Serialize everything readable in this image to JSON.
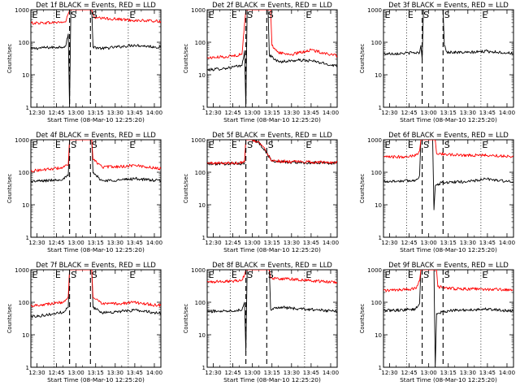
{
  "chart_data": {
    "type": "line",
    "y_scale": "log",
    "ylim": [
      1,
      1000
    ],
    "xlim": [
      "12:25:20",
      "14:05"
    ],
    "ylabel": "Counts/sec",
    "xlabel": "Start Time (08-Mar-10 12:25:20)",
    "x_ticks": [
      "12:30",
      "12:45",
      "13:00",
      "13:15",
      "13:30",
      "13:45",
      "14:00"
    ],
    "y_ticks": [
      "1",
      "10",
      "100",
      "1000"
    ],
    "markers": [
      {
        "label": "E",
        "style": "dotted",
        "times": [
          "12:43",
          "13:40"
        ]
      },
      {
        "label": "S",
        "style": "dashed",
        "times": [
          "12:55",
          "13:11"
        ]
      }
    ],
    "colors": {
      "events": "#000000",
      "lld": "#ff0000"
    },
    "panels": [
      {
        "title": "Det 1f BLACK = Events, RED = LLD",
        "series": [
          {
            "name": "BLACK",
            "pts": [
              [
                "12:25:20",
                63
              ],
              [
                "12:35",
                68
              ],
              [
                "12:45",
                70
              ],
              [
                "12:52",
                75
              ],
              [
                "12:54",
                180
              ],
              [
                "12:55",
                1
              ],
              [
                "12:56",
                1000
              ],
              [
                "13:12",
                1000
              ],
              [
                "13:13",
                72
              ],
              [
                "13:20",
                64
              ],
              [
                "13:35",
                74
              ],
              [
                "13:45",
                82
              ],
              [
                "14:00",
                72
              ],
              [
                "14:05",
                70
              ]
            ]
          },
          {
            "name": "RED",
            "pts": [
              [
                "12:25:20",
                390
              ],
              [
                "12:40",
                400
              ],
              [
                "12:52",
                420
              ],
              [
                "12:55",
                1000
              ],
              [
                "13:12",
                1000
              ],
              [
                "13:14",
                560
              ],
              [
                "13:30",
                520
              ],
              [
                "13:45",
                470
              ],
              [
                "14:05",
                440
              ]
            ]
          }
        ]
      },
      {
        "title": "Det 2f BLACK = Events, RED = LLD",
        "series": [
          {
            "name": "BLACK",
            "pts": [
              [
                "12:25:20",
                14
              ],
              [
                "12:40",
                16
              ],
              [
                "12:52",
                19
              ],
              [
                "12:54",
                55
              ],
              [
                "12:55",
                1
              ],
              [
                "12:56",
                1000
              ],
              [
                "13:12",
                1000
              ],
              [
                "13:13",
                40
              ],
              [
                "13:20",
                25
              ],
              [
                "13:35",
                28
              ],
              [
                "13:45",
                27
              ],
              [
                "14:00",
                20
              ],
              [
                "14:05",
                19
              ]
            ]
          },
          {
            "name": "RED",
            "pts": [
              [
                "12:25:20",
                33
              ],
              [
                "12:40",
                36
              ],
              [
                "12:52",
                42
              ],
              [
                "12:55",
                1000
              ],
              [
                "13:14",
                1000
              ],
              [
                "13:15",
                80
              ],
              [
                "13:20",
                48
              ],
              [
                "13:30",
                42
              ],
              [
                "13:45",
                58
              ],
              [
                "14:00",
                42
              ],
              [
                "14:05",
                38
              ]
            ]
          }
        ]
      },
      {
        "title": "Det 3f BLACK = Events, RED = LLD",
        "series": [
          {
            "name": "BLACK",
            "pts": [
              [
                "12:25:20",
                44
              ],
              [
                "12:40",
                46
              ],
              [
                "12:53",
                48
              ],
              [
                "12:54",
                80
              ],
              [
                "12:55",
                30
              ],
              [
                "12:56",
                1000
              ],
              [
                "13:11",
                1000
              ],
              [
                "13:12",
                78
              ],
              [
                "13:14",
                50
              ],
              [
                "13:30",
                48
              ],
              [
                "13:45",
                53
              ],
              [
                "14:00",
                47
              ],
              [
                "14:05",
                46
              ]
            ]
          }
        ]
      },
      {
        "title": "Det 4f BLACK = Events, RED = LLD",
        "series": [
          {
            "name": "BLACK",
            "pts": [
              [
                "12:25:20",
                52
              ],
              [
                "12:40",
                56
              ],
              [
                "12:50",
                62
              ],
              [
                "12:54",
                78
              ],
              [
                "12:55",
                1000
              ],
              [
                "13:12",
                1000
              ],
              [
                "13:13",
                95
              ],
              [
                "13:20",
                55
              ],
              [
                "13:35",
                58
              ],
              [
                "13:45",
                64
              ],
              [
                "14:00",
                56
              ],
              [
                "14:05",
                55
              ]
            ]
          },
          {
            "name": "RED",
            "pts": [
              [
                "12:25:20",
                110
              ],
              [
                "12:40",
                125
              ],
              [
                "12:50",
                140
              ],
              [
                "12:54",
                170
              ],
              [
                "12:55",
                1000
              ],
              [
                "13:12",
                1000
              ],
              [
                "13:13",
                250
              ],
              [
                "13:20",
                145
              ],
              [
                "13:35",
                150
              ],
              [
                "13:45",
                165
              ],
              [
                "14:00",
                135
              ],
              [
                "14:05",
                130
              ]
            ]
          }
        ]
      },
      {
        "title": "Det 5f BLACK = Events, RED = LLD",
        "series": [
          {
            "name": "BLACK",
            "pts": [
              [
                "12:25:20",
                180
              ],
              [
                "12:50",
                185
              ],
              [
                "12:54",
                190
              ],
              [
                "12:55",
                1000
              ],
              [
                "13:00",
                1000
              ],
              [
                "13:05",
                800
              ],
              [
                "13:10",
                450
              ],
              [
                "13:15",
                220
              ],
              [
                "13:30",
                200
              ],
              [
                "13:45",
                195
              ],
              [
                "14:05",
                190
              ]
            ]
          },
          {
            "name": "RED",
            "pts": [
              [
                "12:25:20",
                190
              ],
              [
                "12:50",
                195
              ],
              [
                "12:54",
                210
              ],
              [
                "12:55",
                1000
              ],
              [
                "13:00",
                1000
              ],
              [
                "13:05",
                850
              ],
              [
                "13:10",
                480
              ],
              [
                "13:15",
                230
              ],
              [
                "13:30",
                210
              ],
              [
                "13:45",
                205
              ],
              [
                "14:05",
                200
              ]
            ]
          }
        ]
      },
      {
        "title": "Det 6f BLACK = Events, RED = LLD",
        "series": [
          {
            "name": "BLACK",
            "pts": [
              [
                "12:25:20",
                52
              ],
              [
                "12:40",
                54
              ],
              [
                "12:50",
                56
              ],
              [
                "12:53",
                80
              ],
              [
                "12:54",
                1000
              ],
              [
                "13:03",
                1000
              ],
              [
                "13:04",
                7
              ],
              [
                "13:05",
                38
              ],
              [
                "13:10",
                48
              ],
              [
                "13:30",
                52
              ],
              [
                "13:45",
                62
              ],
              [
                "14:00",
                52
              ],
              [
                "14:05",
                50
              ]
            ]
          },
          {
            "name": "RED",
            "pts": [
              [
                "12:25:20",
                290
              ],
              [
                "12:40",
                300
              ],
              [
                "12:50",
                330
              ],
              [
                "12:53",
                450
              ],
              [
                "12:54",
                1000
              ],
              [
                "13:05",
                1000
              ],
              [
                "13:06",
                380
              ],
              [
                "13:20",
                340
              ],
              [
                "13:45",
                330
              ],
              [
                "14:05",
                310
              ]
            ]
          }
        ]
      },
      {
        "title": "Det 7f BLACK = Events, RED = LLD",
        "series": [
          {
            "name": "BLACK",
            "pts": [
              [
                "12:25:20",
                36
              ],
              [
                "12:40",
                42
              ],
              [
                "12:50",
                50
              ],
              [
                "12:54",
                70
              ],
              [
                "12:55",
                1000
              ],
              [
                "13:12",
                1000
              ],
              [
                "13:13",
                70
              ],
              [
                "13:20",
                48
              ],
              [
                "13:35",
                52
              ],
              [
                "13:45",
                58
              ],
              [
                "14:00",
                48
              ],
              [
                "14:05",
                46
              ]
            ]
          },
          {
            "name": "RED",
            "pts": [
              [
                "12:25:20",
                78
              ],
              [
                "12:40",
                90
              ],
              [
                "12:50",
                100
              ],
              [
                "12:54",
                150
              ],
              [
                "12:55",
                1000
              ],
              [
                "13:12",
                1000
              ],
              [
                "13:13",
                140
              ],
              [
                "13:20",
                88
              ],
              [
                "13:35",
                92
              ],
              [
                "13:45",
                100
              ],
              [
                "14:00",
                82
              ],
              [
                "14:05",
                80
              ]
            ]
          }
        ]
      },
      {
        "title": "Det 8f BLACK = Events, RED = LLD",
        "series": [
          {
            "name": "BLACK",
            "pts": [
              [
                "12:25:20",
                52
              ],
              [
                "12:40",
                55
              ],
              [
                "12:52",
                58
              ],
              [
                "12:54",
                100
              ],
              [
                "12:55",
                3
              ],
              [
                "12:56",
                1000
              ],
              [
                "13:13",
                1000
              ],
              [
                "13:14",
                60
              ],
              [
                "13:20",
                72
              ],
              [
                "13:35",
                62
              ],
              [
                "13:45",
                60
              ],
              [
                "14:00",
                54
              ],
              [
                "14:05",
                52
              ]
            ]
          },
          {
            "name": "RED",
            "pts": [
              [
                "12:25:20",
                420
              ],
              [
                "12:40",
                440
              ],
              [
                "12:52",
                480
              ],
              [
                "12:54",
                700
              ],
              [
                "12:55",
                1000
              ],
              [
                "13:13",
                1000
              ],
              [
                "13:14",
                550
              ],
              [
                "13:30",
                520
              ],
              [
                "13:45",
                460
              ],
              [
                "14:00",
                420
              ],
              [
                "14:05",
                410
              ]
            ]
          }
        ]
      },
      {
        "title": "Det 9f BLACK = Events, RED = LLD",
        "series": [
          {
            "name": "BLACK",
            "pts": [
              [
                "12:25:20",
                55
              ],
              [
                "12:40",
                58
              ],
              [
                "12:50",
                62
              ],
              [
                "12:53",
                90
              ],
              [
                "12:54",
                1000
              ],
              [
                "13:04",
                1000
              ],
              [
                "13:05",
                1
              ],
              [
                "13:06",
                45
              ],
              [
                "13:15",
                55
              ],
              [
                "13:30",
                58
              ],
              [
                "13:45",
                62
              ],
              [
                "14:00",
                55
              ],
              [
                "14:05",
                54
              ]
            ]
          },
          {
            "name": "RED",
            "pts": [
              [
                "12:25:20",
                230
              ],
              [
                "12:40",
                240
              ],
              [
                "12:50",
                260
              ],
              [
                "12:53",
                450
              ],
              [
                "12:54",
                1000
              ],
              [
                "13:06",
                1000
              ],
              [
                "13:07",
                300
              ],
              [
                "13:20",
                260
              ],
              [
                "13:45",
                250
              ],
              [
                "14:05",
                240
              ]
            ]
          }
        ]
      }
    ]
  }
}
